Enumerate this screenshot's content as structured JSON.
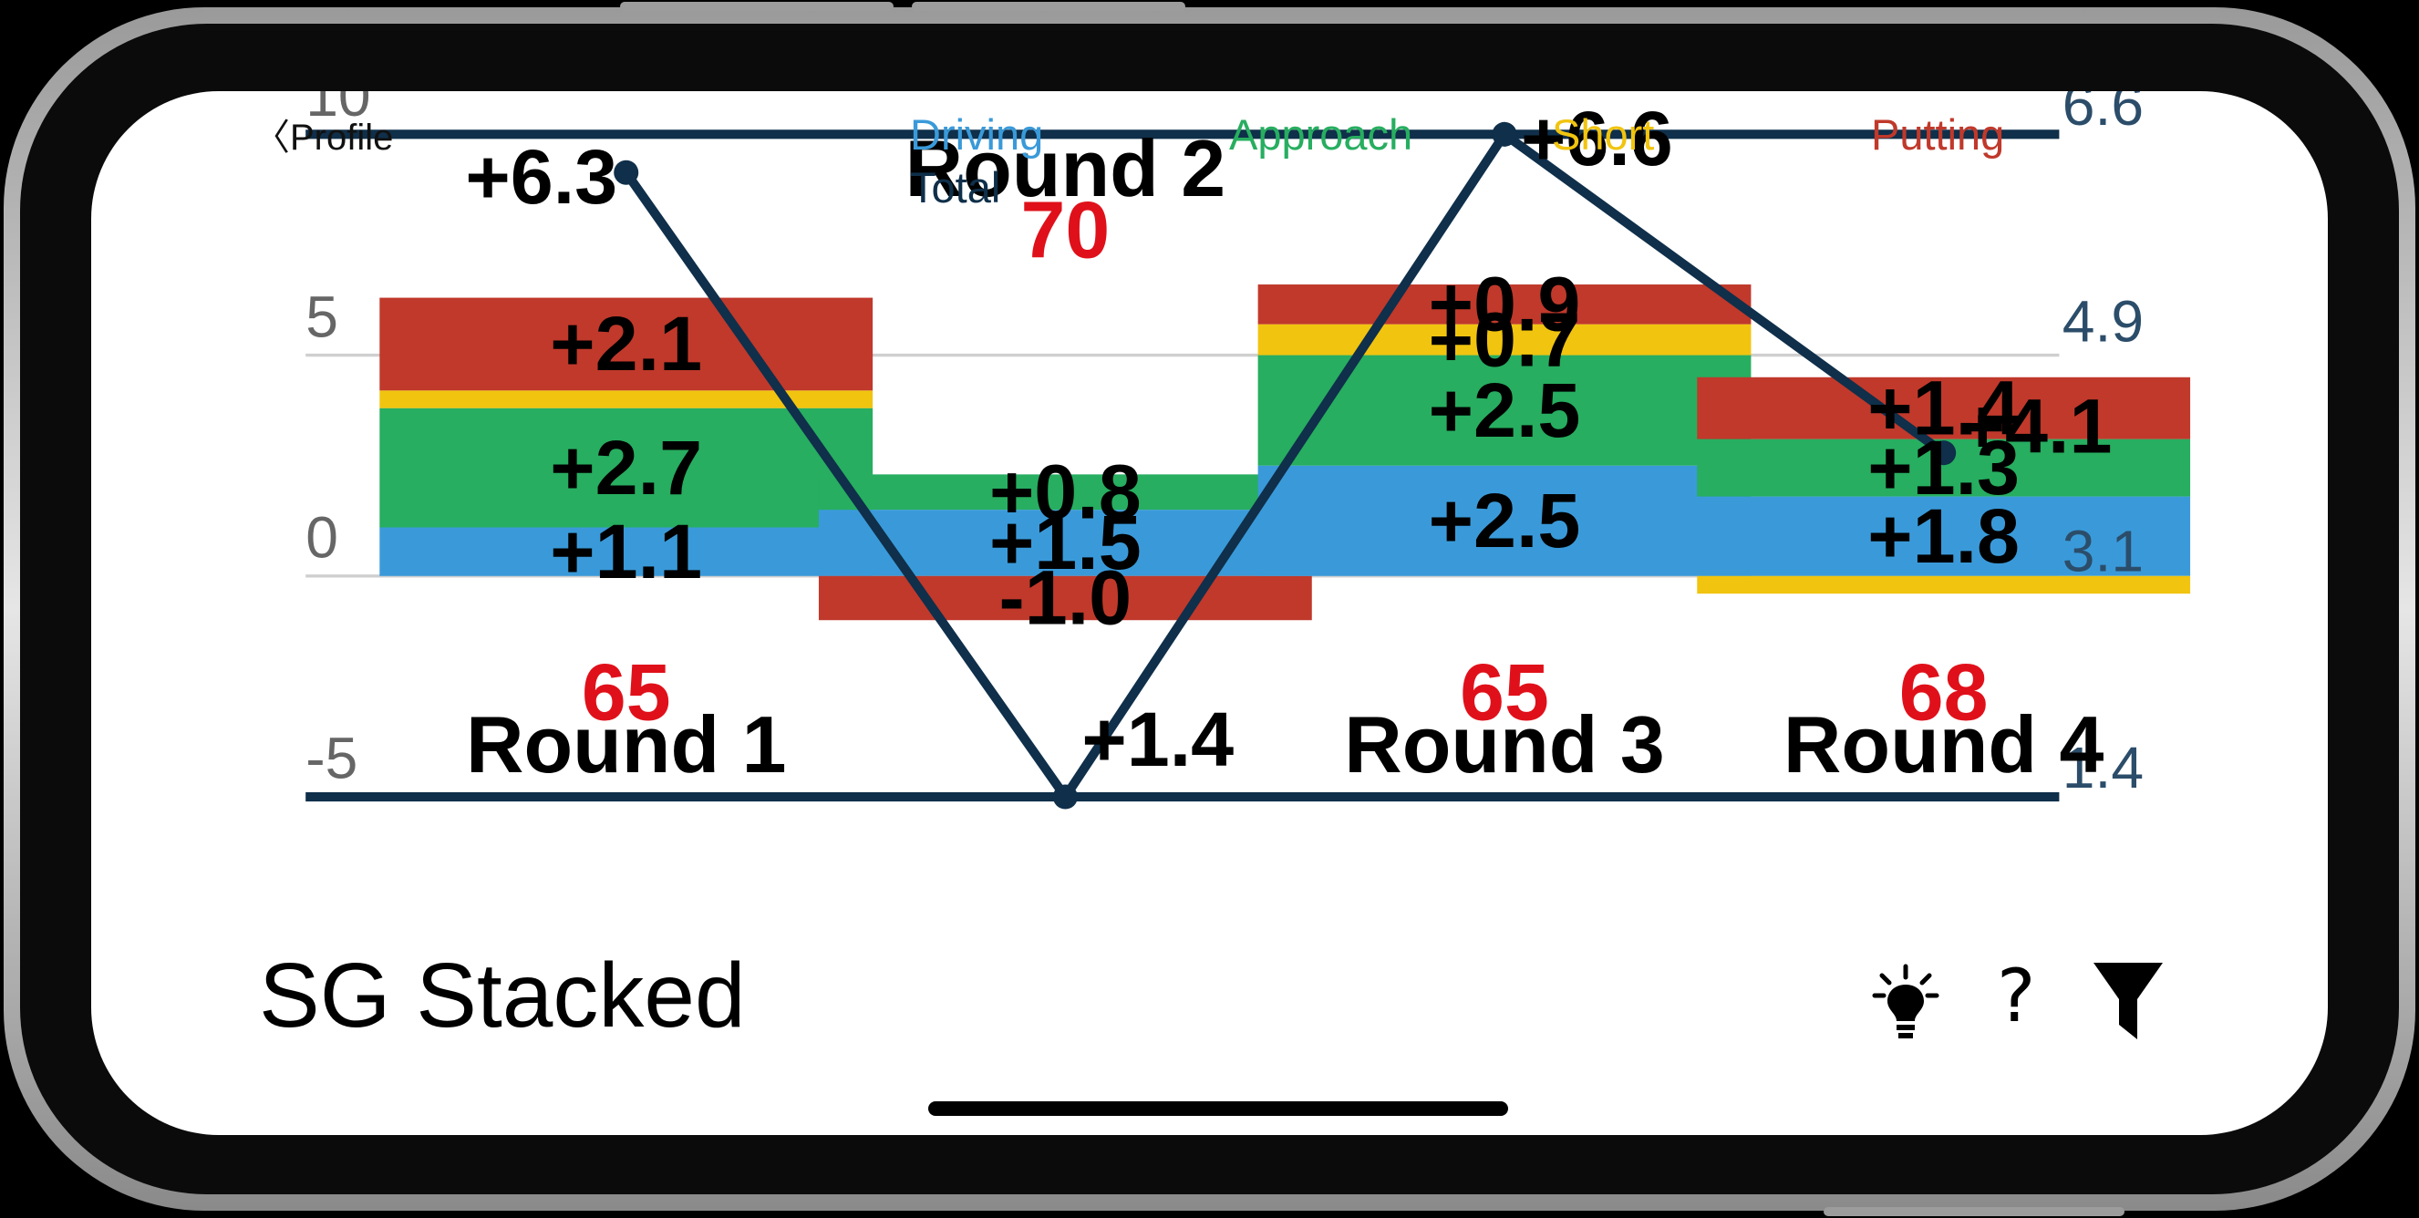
{
  "nav": {
    "back_label": "〈Profile"
  },
  "page": {
    "title": "SG Stacked"
  },
  "legend": {
    "driving": "Driving",
    "approach": "Approach",
    "short": "Short",
    "putting": "Putting",
    "total": "Total"
  },
  "colors": {
    "driving": "#3a9ad9",
    "approach": "#27ae60",
    "short": "#f1c40f",
    "putting": "#c0392b",
    "total": "#0f2f4a",
    "score": "#e0101a"
  },
  "toolbar": {
    "tips_icon": "lightbulb-icon",
    "help_icon": "question-mark-icon",
    "help_label": "?",
    "filter_icon": "funnel-icon"
  },
  "chart_data": {
    "type": "bar",
    "stacked": true,
    "categories": [
      "Round 1",
      "Round 2",
      "Round 3",
      "Round 4"
    ],
    "scores": [
      "65",
      "70",
      "65",
      "68"
    ],
    "series": [
      {
        "name": "Driving",
        "values": [
          1.1,
          1.5,
          2.5,
          1.8
        ]
      },
      {
        "name": "Approach",
        "values": [
          2.7,
          0.8,
          2.5,
          1.3
        ]
      },
      {
        "name": "Short",
        "values": [
          0.4,
          0.0,
          0.7,
          -0.4
        ]
      },
      {
        "name": "Putting",
        "values": [
          2.1,
          -1.0,
          0.9,
          1.4
        ]
      }
    ],
    "bar_labels": [
      [
        "+1.1",
        "+2.7",
        "",
        "+2.1"
      ],
      [
        "+1.5",
        "+0.8",
        "",
        "-1.0"
      ],
      [
        "+2.5",
        "+2.5",
        "+0.7",
        "+0.9"
      ],
      [
        "+1.8",
        "+1.3",
        "",
        "+1.4"
      ]
    ],
    "total_series": {
      "values": [
        6.3,
        1.4,
        6.6,
        4.1
      ],
      "labels": [
        "+6.3",
        "+1.4",
        "+6.6",
        "+4.1"
      ]
    },
    "left_axis": {
      "ticks": [
        "10",
        "5",
        "0",
        "-5"
      ],
      "range": [
        -5,
        10
      ]
    },
    "right_axis": {
      "ticks": [
        "6.6",
        "4.9",
        "3.1",
        "1.4"
      ],
      "range": [
        1.4,
        6.6
      ]
    },
    "grid": true
  }
}
